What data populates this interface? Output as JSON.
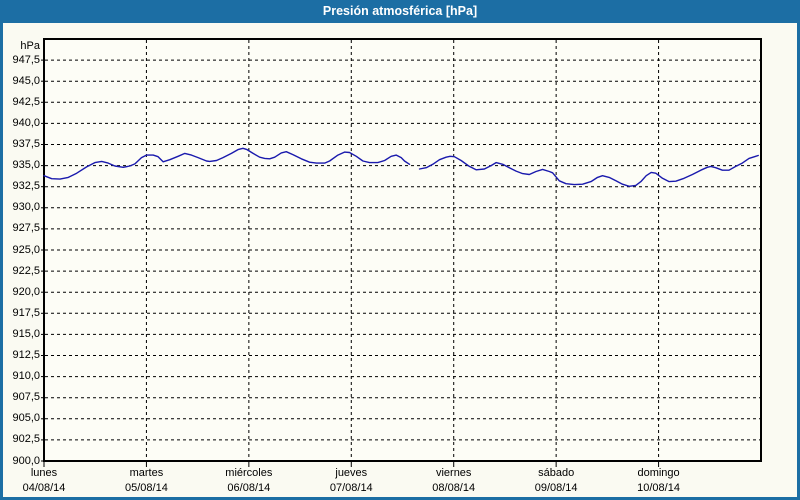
{
  "title": "Presión atmosférica [hPa]",
  "chart_data": {
    "type": "line",
    "title": "Presión atmosférica [hPa]",
    "y_unit": "hPa",
    "ylabel": "hPa",
    "xlabel": "",
    "ylim": [
      900,
      950
    ],
    "ytick_step": 2.5,
    "grid": "dashed",
    "legend_position": "none",
    "line_color": "#1a1aad",
    "grid_color": "#000000",
    "axis_color": "#000000",
    "plot_bg": "#fdfdf6",
    "titlebar_color": "#1c6ea4",
    "y_ticks": [
      [
        947.5,
        "947,5"
      ],
      [
        945.0,
        "945,0"
      ],
      [
        942.5,
        "942,5"
      ],
      [
        940.0,
        "940,0"
      ],
      [
        937.5,
        "937,5"
      ],
      [
        935.0,
        "935,0"
      ],
      [
        932.5,
        "932,5"
      ],
      [
        930.0,
        "930,0"
      ],
      [
        927.5,
        "927,5"
      ],
      [
        925.0,
        "925,0"
      ],
      [
        922.5,
        "922,5"
      ],
      [
        920.0,
        "920,0"
      ],
      [
        917.5,
        "917,5"
      ],
      [
        915.0,
        "915,0"
      ],
      [
        912.5,
        "912,5"
      ],
      [
        910.0,
        "910,0"
      ],
      [
        907.5,
        "907,5"
      ],
      [
        905.0,
        "905,0"
      ],
      [
        902.5,
        "902,5"
      ],
      [
        900.0,
        "900,0"
      ]
    ],
    "days": [
      {
        "name": "lunes",
        "date": "04/08/14"
      },
      {
        "name": "martes",
        "date": "05/08/14"
      },
      {
        "name": "miércoles",
        "date": "06/08/14"
      },
      {
        "name": "jueves",
        "date": "07/08/14"
      },
      {
        "name": "viernes",
        "date": "08/08/14"
      },
      {
        "name": "sábado",
        "date": "09/08/14"
      },
      {
        "name": "domingo",
        "date": "10/08/14"
      }
    ],
    "series": [
      {
        "name": "Presión atmosférica",
        "x_unit": "days_since_2014-08-04",
        "segments": [
          [
            [
              0.0,
              933.8
            ],
            [
              0.075,
              933.45
            ],
            [
              0.156,
              933.4
            ],
            [
              0.237,
              933.6
            ],
            [
              0.319,
              934.1
            ],
            [
              0.416,
              934.85
            ],
            [
              0.497,
              935.35
            ],
            [
              0.563,
              935.5
            ],
            [
              0.627,
              935.3
            ],
            [
              0.692,
              934.95
            ],
            [
              0.773,
              934.8
            ],
            [
              0.838,
              934.95
            ],
            [
              0.887,
              935.2
            ],
            [
              0.952,
              935.95
            ],
            [
              1.001,
              936.25
            ],
            [
              1.066,
              936.25
            ],
            [
              1.114,
              936.05
            ],
            [
              1.163,
              935.45
            ],
            [
              1.228,
              935.7
            ],
            [
              1.309,
              936.1
            ],
            [
              1.375,
              936.45
            ],
            [
              1.44,
              936.25
            ],
            [
              1.504,
              935.95
            ],
            [
              1.586,
              935.55
            ],
            [
              1.618,
              935.5
            ],
            [
              1.684,
              935.6
            ],
            [
              1.748,
              935.95
            ],
            [
              1.83,
              936.45
            ],
            [
              1.894,
              936.9
            ],
            [
              1.943,
              937.05
            ],
            [
              1.982,
              936.9
            ],
            [
              2.041,
              936.45
            ],
            [
              2.106,
              936.0
            ],
            [
              2.155,
              935.85
            ],
            [
              2.203,
              935.8
            ],
            [
              2.252,
              936.0
            ],
            [
              2.317,
              936.5
            ],
            [
              2.366,
              936.65
            ],
            [
              2.43,
              936.3
            ],
            [
              2.512,
              935.8
            ],
            [
              2.593,
              935.4
            ],
            [
              2.659,
              935.3
            ],
            [
              2.74,
              935.3
            ],
            [
              2.788,
              935.55
            ],
            [
              2.869,
              936.25
            ],
            [
              2.934,
              936.6
            ],
            [
              2.983,
              936.55
            ],
            [
              3.049,
              936.1
            ],
            [
              3.113,
              935.55
            ],
            [
              3.178,
              935.35
            ],
            [
              3.259,
              935.35
            ],
            [
              3.325,
              935.6
            ],
            [
              3.39,
              936.1
            ],
            [
              3.439,
              936.25
            ],
            [
              3.487,
              935.95
            ],
            [
              3.52,
              935.55
            ],
            [
              3.568,
              935.15
            ]
          ],
          [
            [
              3.666,
              934.6
            ],
            [
              3.731,
              934.75
            ],
            [
              3.796,
              935.15
            ],
            [
              3.861,
              935.7
            ],
            [
              3.926,
              936.0
            ],
            [
              3.965,
              936.1
            ],
            [
              4.007,
              936.05
            ],
            [
              4.072,
              935.6
            ],
            [
              4.153,
              934.9
            ],
            [
              4.219,
              934.5
            ],
            [
              4.3,
              934.6
            ],
            [
              4.365,
              935.0
            ],
            [
              4.414,
              935.35
            ],
            [
              4.478,
              935.15
            ],
            [
              4.543,
              934.75
            ],
            [
              4.609,
              934.35
            ],
            [
              4.673,
              934.05
            ],
            [
              4.738,
              933.95
            ],
            [
              4.803,
              934.3
            ],
            [
              4.868,
              934.55
            ],
            [
              4.933,
              934.3
            ],
            [
              4.965,
              934.15
            ],
            [
              5.031,
              933.2
            ],
            [
              5.096,
              932.85
            ],
            [
              5.177,
              932.75
            ],
            [
              5.258,
              932.8
            ],
            [
              5.34,
              933.1
            ],
            [
              5.404,
              933.6
            ],
            [
              5.453,
              933.8
            ],
            [
              5.518,
              933.6
            ],
            [
              5.583,
              933.2
            ],
            [
              5.648,
              932.8
            ],
            [
              5.713,
              932.55
            ],
            [
              5.778,
              932.65
            ],
            [
              5.827,
              933.1
            ],
            [
              5.879,
              933.8
            ],
            [
              5.928,
              934.2
            ],
            [
              5.973,
              934.1
            ],
            [
              6.038,
              933.5
            ],
            [
              6.103,
              933.1
            ],
            [
              6.168,
              933.15
            ],
            [
              6.249,
              933.5
            ],
            [
              6.33,
              933.95
            ],
            [
              6.412,
              934.45
            ],
            [
              6.476,
              934.8
            ],
            [
              6.51,
              934.9
            ],
            [
              6.558,
              934.75
            ],
            [
              6.623,
              934.45
            ],
            [
              6.688,
              934.45
            ],
            [
              6.753,
              934.9
            ],
            [
              6.817,
              935.3
            ],
            [
              6.883,
              935.85
            ],
            [
              6.948,
              936.1
            ],
            [
              6.973,
              936.2
            ]
          ]
        ]
      }
    ]
  }
}
